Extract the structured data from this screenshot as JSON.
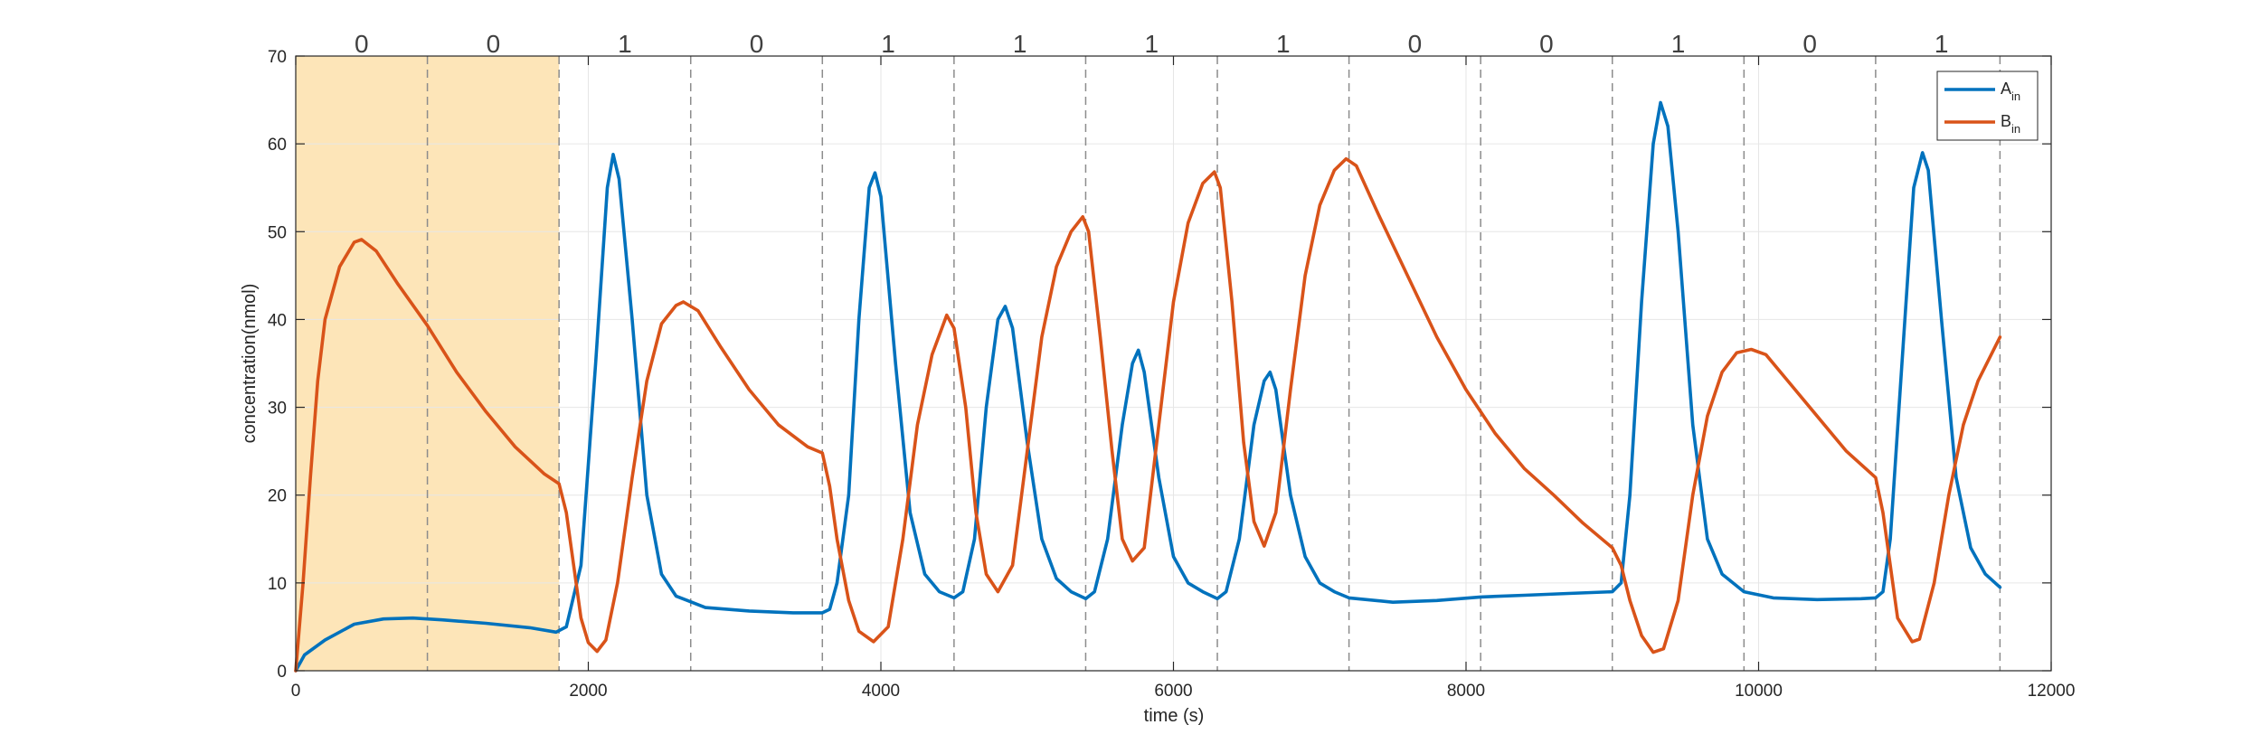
{
  "chart_data": {
    "type": "line",
    "xlabel": "time (s)",
    "ylabel": "concentration(nmol)",
    "xlim": [
      0,
      12000
    ],
    "ylim": [
      0,
      70
    ],
    "x_ticks": [
      0,
      2000,
      4000,
      6000,
      8000,
      10000,
      12000
    ],
    "y_ticks": [
      0,
      10,
      20,
      30,
      40,
      50,
      60,
      70
    ],
    "grid": true,
    "legend_position": "top-right",
    "input_period_s": 900,
    "vertical_dashed_lines": [
      900,
      1800,
      2700,
      3600,
      4500,
      5400,
      6300,
      7200,
      8100,
      9000,
      9900,
      10800,
      11650
    ],
    "shaded_region": [
      0,
      1800
    ],
    "bits": [
      "0",
      "0",
      "1",
      "0",
      "1",
      "1",
      "1",
      "1",
      "0",
      "0",
      "1",
      "0",
      "1"
    ],
    "colors": {
      "A_in": "#0072BD",
      "B_in": "#D95319",
      "shade": "#FDE5B8",
      "dashed": "#8c8c8c",
      "grid": "#e6e6e6",
      "axis": "#262626"
    },
    "series": [
      {
        "name": "A",
        "name_sub": "in",
        "key": "A_in",
        "points": [
          [
            0,
            0
          ],
          [
            60,
            1.8
          ],
          [
            200,
            3.5
          ],
          [
            400,
            5.3
          ],
          [
            600,
            5.9
          ],
          [
            800,
            6
          ],
          [
            1000,
            5.8
          ],
          [
            1300,
            5.4
          ],
          [
            1600,
            4.9
          ],
          [
            1780,
            4.4
          ],
          [
            1850,
            5
          ],
          [
            1950,
            12
          ],
          [
            2050,
            35
          ],
          [
            2130,
            55
          ],
          [
            2170,
            58.8
          ],
          [
            2210,
            56
          ],
          [
            2300,
            40
          ],
          [
            2400,
            20
          ],
          [
            2500,
            11
          ],
          [
            2600,
            8.5
          ],
          [
            2800,
            7.2
          ],
          [
            3100,
            6.8
          ],
          [
            3400,
            6.6
          ],
          [
            3600,
            6.6
          ],
          [
            3650,
            7
          ],
          [
            3700,
            10
          ],
          [
            3780,
            20
          ],
          [
            3850,
            40
          ],
          [
            3920,
            55
          ],
          [
            3960,
            56.7
          ],
          [
            4000,
            54
          ],
          [
            4100,
            35
          ],
          [
            4200,
            18
          ],
          [
            4300,
            11
          ],
          [
            4400,
            9
          ],
          [
            4500,
            8.3
          ],
          [
            4560,
            9
          ],
          [
            4640,
            15
          ],
          [
            4720,
            30
          ],
          [
            4800,
            40
          ],
          [
            4850,
            41.5
          ],
          [
            4900,
            39
          ],
          [
            5000,
            26
          ],
          [
            5100,
            15
          ],
          [
            5200,
            10.5
          ],
          [
            5300,
            9
          ],
          [
            5400,
            8.2
          ],
          [
            5460,
            9
          ],
          [
            5550,
            15
          ],
          [
            5650,
            28
          ],
          [
            5720,
            35
          ],
          [
            5760,
            36.5
          ],
          [
            5800,
            34
          ],
          [
            5900,
            22
          ],
          [
            6000,
            13
          ],
          [
            6100,
            10
          ],
          [
            6200,
            9
          ],
          [
            6300,
            8.2
          ],
          [
            6360,
            9
          ],
          [
            6450,
            15
          ],
          [
            6550,
            28
          ],
          [
            6620,
            33
          ],
          [
            6660,
            34
          ],
          [
            6700,
            32
          ],
          [
            6800,
            20
          ],
          [
            6900,
            13
          ],
          [
            7000,
            10
          ],
          [
            7100,
            9
          ],
          [
            7200,
            8.3
          ],
          [
            7500,
            7.8
          ],
          [
            7800,
            8
          ],
          [
            8100,
            8.4
          ],
          [
            8400,
            8.6
          ],
          [
            8700,
            8.8
          ],
          [
            9000,
            9
          ],
          [
            9060,
            10
          ],
          [
            9120,
            20
          ],
          [
            9200,
            42
          ],
          [
            9280,
            60
          ],
          [
            9330,
            64.7
          ],
          [
            9380,
            62
          ],
          [
            9450,
            50
          ],
          [
            9550,
            28
          ],
          [
            9650,
            15
          ],
          [
            9750,
            11
          ],
          [
            9900,
            9
          ],
          [
            10100,
            8.3
          ],
          [
            10400,
            8.1
          ],
          [
            10700,
            8.2
          ],
          [
            10800,
            8.3
          ],
          [
            10850,
            9
          ],
          [
            10900,
            15
          ],
          [
            10980,
            35
          ],
          [
            11060,
            55
          ],
          [
            11120,
            59
          ],
          [
            11160,
            57
          ],
          [
            11250,
            40
          ],
          [
            11350,
            22
          ],
          [
            11450,
            14
          ],
          [
            11550,
            11
          ],
          [
            11650,
            9.5
          ]
        ]
      },
      {
        "name": "B",
        "name_sub": "in",
        "key": "B_in",
        "points": [
          [
            0,
            0
          ],
          [
            50,
            10
          ],
          [
            100,
            22
          ],
          [
            150,
            33
          ],
          [
            200,
            40
          ],
          [
            300,
            46
          ],
          [
            400,
            48.8
          ],
          [
            450,
            49.1
          ],
          [
            550,
            47.8
          ],
          [
            700,
            44
          ],
          [
            900,
            39.3
          ],
          [
            1100,
            34
          ],
          [
            1300,
            29.5
          ],
          [
            1500,
            25.5
          ],
          [
            1700,
            22.4
          ],
          [
            1800,
            21.3
          ],
          [
            1850,
            18
          ],
          [
            1900,
            12
          ],
          [
            1950,
            6
          ],
          [
            2000,
            3.2
          ],
          [
            2060,
            2.2
          ],
          [
            2120,
            3.5
          ],
          [
            2200,
            10
          ],
          [
            2300,
            22
          ],
          [
            2400,
            33
          ],
          [
            2500,
            39.5
          ],
          [
            2600,
            41.6
          ],
          [
            2650,
            42
          ],
          [
            2750,
            41
          ],
          [
            2900,
            37
          ],
          [
            3100,
            32
          ],
          [
            3300,
            28
          ],
          [
            3500,
            25.5
          ],
          [
            3600,
            24.8
          ],
          [
            3650,
            21
          ],
          [
            3700,
            15
          ],
          [
            3780,
            8
          ],
          [
            3850,
            4.5
          ],
          [
            3950,
            3.3
          ],
          [
            4050,
            5
          ],
          [
            4150,
            15
          ],
          [
            4250,
            28
          ],
          [
            4350,
            36
          ],
          [
            4450,
            40.5
          ],
          [
            4500,
            39
          ],
          [
            4580,
            30
          ],
          [
            4650,
            18
          ],
          [
            4720,
            11
          ],
          [
            4800,
            9
          ],
          [
            4900,
            12
          ],
          [
            5000,
            25
          ],
          [
            5100,
            38
          ],
          [
            5200,
            46
          ],
          [
            5300,
            50
          ],
          [
            5380,
            51.7
          ],
          [
            5420,
            50
          ],
          [
            5500,
            38
          ],
          [
            5580,
            25
          ],
          [
            5650,
            15
          ],
          [
            5720,
            12.5
          ],
          [
            5800,
            14
          ],
          [
            5900,
            28
          ],
          [
            6000,
            42
          ],
          [
            6100,
            51
          ],
          [
            6200,
            55.5
          ],
          [
            6280,
            56.8
          ],
          [
            6320,
            55
          ],
          [
            6400,
            42
          ],
          [
            6480,
            26
          ],
          [
            6550,
            17
          ],
          [
            6620,
            14.2
          ],
          [
            6700,
            18
          ],
          [
            6800,
            32
          ],
          [
            6900,
            45
          ],
          [
            7000,
            53
          ],
          [
            7100,
            57
          ],
          [
            7180,
            58.3
          ],
          [
            7250,
            57.5
          ],
          [
            7400,
            52
          ],
          [
            7600,
            45
          ],
          [
            7800,
            38
          ],
          [
            8000,
            32
          ],
          [
            8200,
            27
          ],
          [
            8400,
            23
          ],
          [
            8600,
            20
          ],
          [
            8800,
            16.8
          ],
          [
            9000,
            14
          ],
          [
            9060,
            12
          ],
          [
            9120,
            8
          ],
          [
            9200,
            4
          ],
          [
            9280,
            2.1
          ],
          [
            9350,
            2.5
          ],
          [
            9450,
            8
          ],
          [
            9550,
            20
          ],
          [
            9650,
            29
          ],
          [
            9750,
            34
          ],
          [
            9850,
            36.2
          ],
          [
            9950,
            36.6
          ],
          [
            10050,
            36
          ],
          [
            10200,
            33
          ],
          [
            10400,
            29
          ],
          [
            10600,
            25
          ],
          [
            10800,
            22
          ],
          [
            10850,
            18
          ],
          [
            10900,
            12
          ],
          [
            10950,
            6
          ],
          [
            11050,
            3.3
          ],
          [
            11100,
            3.6
          ],
          [
            11200,
            10
          ],
          [
            11300,
            20
          ],
          [
            11400,
            28
          ],
          [
            11500,
            33
          ],
          [
            11650,
            38
          ]
        ]
      }
    ]
  }
}
